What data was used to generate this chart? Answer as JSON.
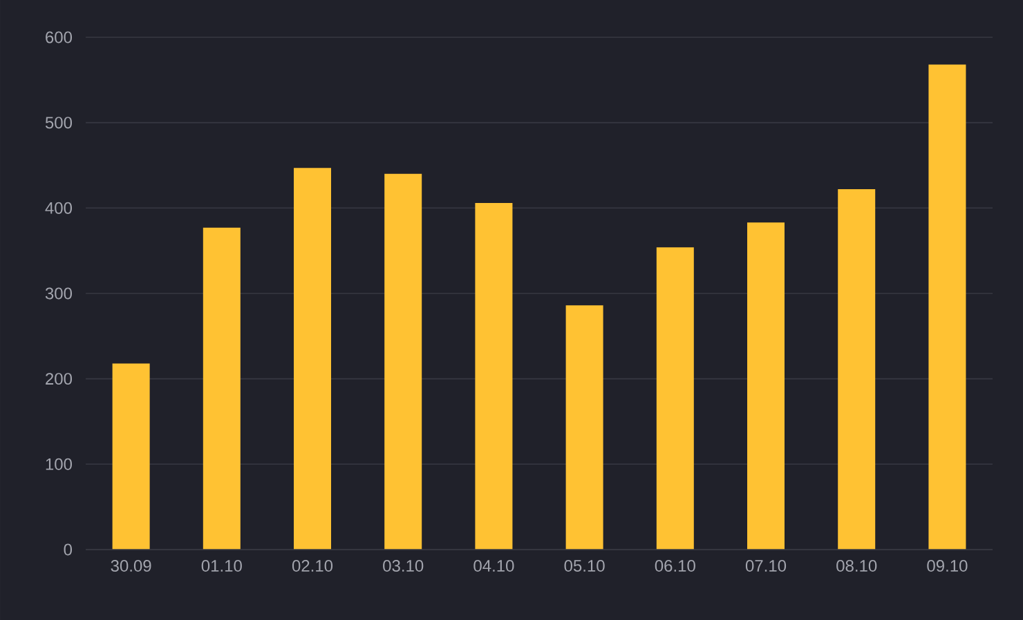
{
  "chart_data": {
    "type": "bar",
    "categories": [
      "30.09",
      "01.10",
      "02.10",
      "03.10",
      "04.10",
      "05.10",
      "06.10",
      "07.10",
      "08.10",
      "09.10"
    ],
    "values": [
      218,
      377,
      447,
      440,
      406,
      286,
      354,
      383,
      422,
      568
    ],
    "color": "#ffc233",
    "ylim": [
      0,
      600
    ],
    "yticks": [
      0,
      100,
      200,
      300,
      400,
      500,
      600
    ],
    "grid": "y"
  }
}
